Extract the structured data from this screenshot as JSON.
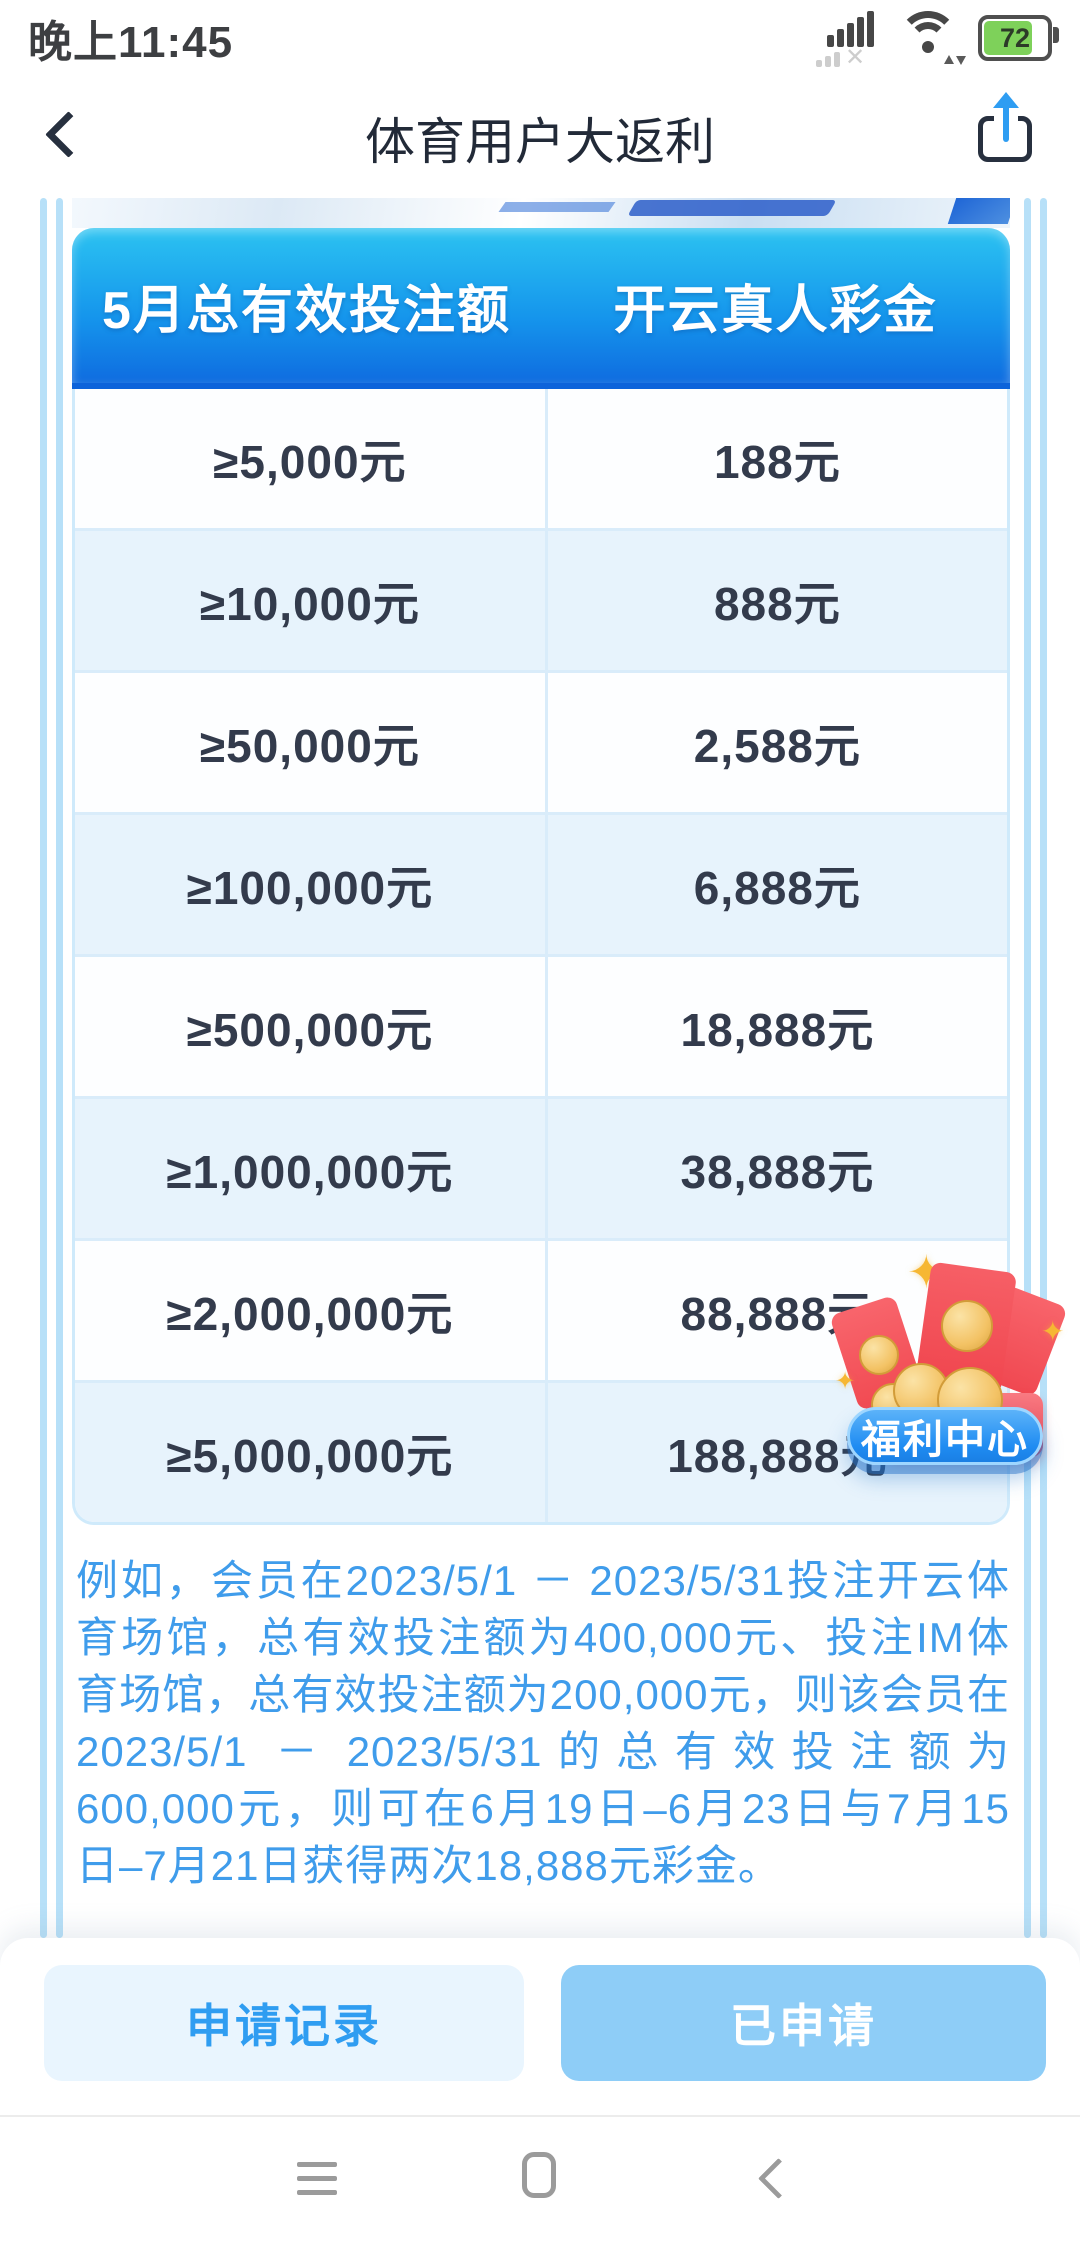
{
  "status_bar": {
    "time": "晚上11:45",
    "battery_percent": "72"
  },
  "nav_bar": {
    "title": "体育用户大返利"
  },
  "rebate_table": {
    "headers": [
      "5月总有效投注额",
      "开云真人彩金"
    ],
    "rows": [
      {
        "bet": "≥5,000元",
        "bonus": "188元"
      },
      {
        "bet": "≥10,000元",
        "bonus": "888元"
      },
      {
        "bet": "≥50,000元",
        "bonus": "2,588元"
      },
      {
        "bet": "≥100,000元",
        "bonus": "6,888元"
      },
      {
        "bet": "≥500,000元",
        "bonus": "18,888元"
      },
      {
        "bet": "≥1,000,000元",
        "bonus": "38,888元"
      },
      {
        "bet": "≥2,000,000元",
        "bonus": "88,888元"
      },
      {
        "bet": "≥5,000,000元",
        "bonus": "188,888元"
      }
    ]
  },
  "example": {
    "text": "例如，会员在2023/5/1 － 2023/5/31投注开云体育场馆，总有效投注额为400,000元、投注IM体育场馆，总有效投注额为200,000元，则该会员在2023/5/1 － 2023/5/31的总有效投注额为600,000元，则可在6月19日–6月23日与7月15日–7月21日获得两次18,888元彩金。"
  },
  "floating_widget": {
    "label": "福利中心",
    "sparkle": "✦"
  },
  "footer": {
    "history_button": "申请记录",
    "applied_button": "已申请"
  },
  "colors": {
    "header_gradient_top": "#2cc3f1",
    "header_gradient_bottom": "#0f6ce0",
    "row_alt_blue": "#e7f3fc",
    "table_border": "#cfeafb",
    "paragraph_blue": "#3f9ceb",
    "pill_blue": "#1f8cf2",
    "button_secondary_bg": "#e9f5fe",
    "button_secondary_text": "#2f9df1",
    "button_primary_bg": "#8ecdf7",
    "battery_green": "#7ed15a",
    "card_stripe_blue": "#b7e0f8"
  }
}
